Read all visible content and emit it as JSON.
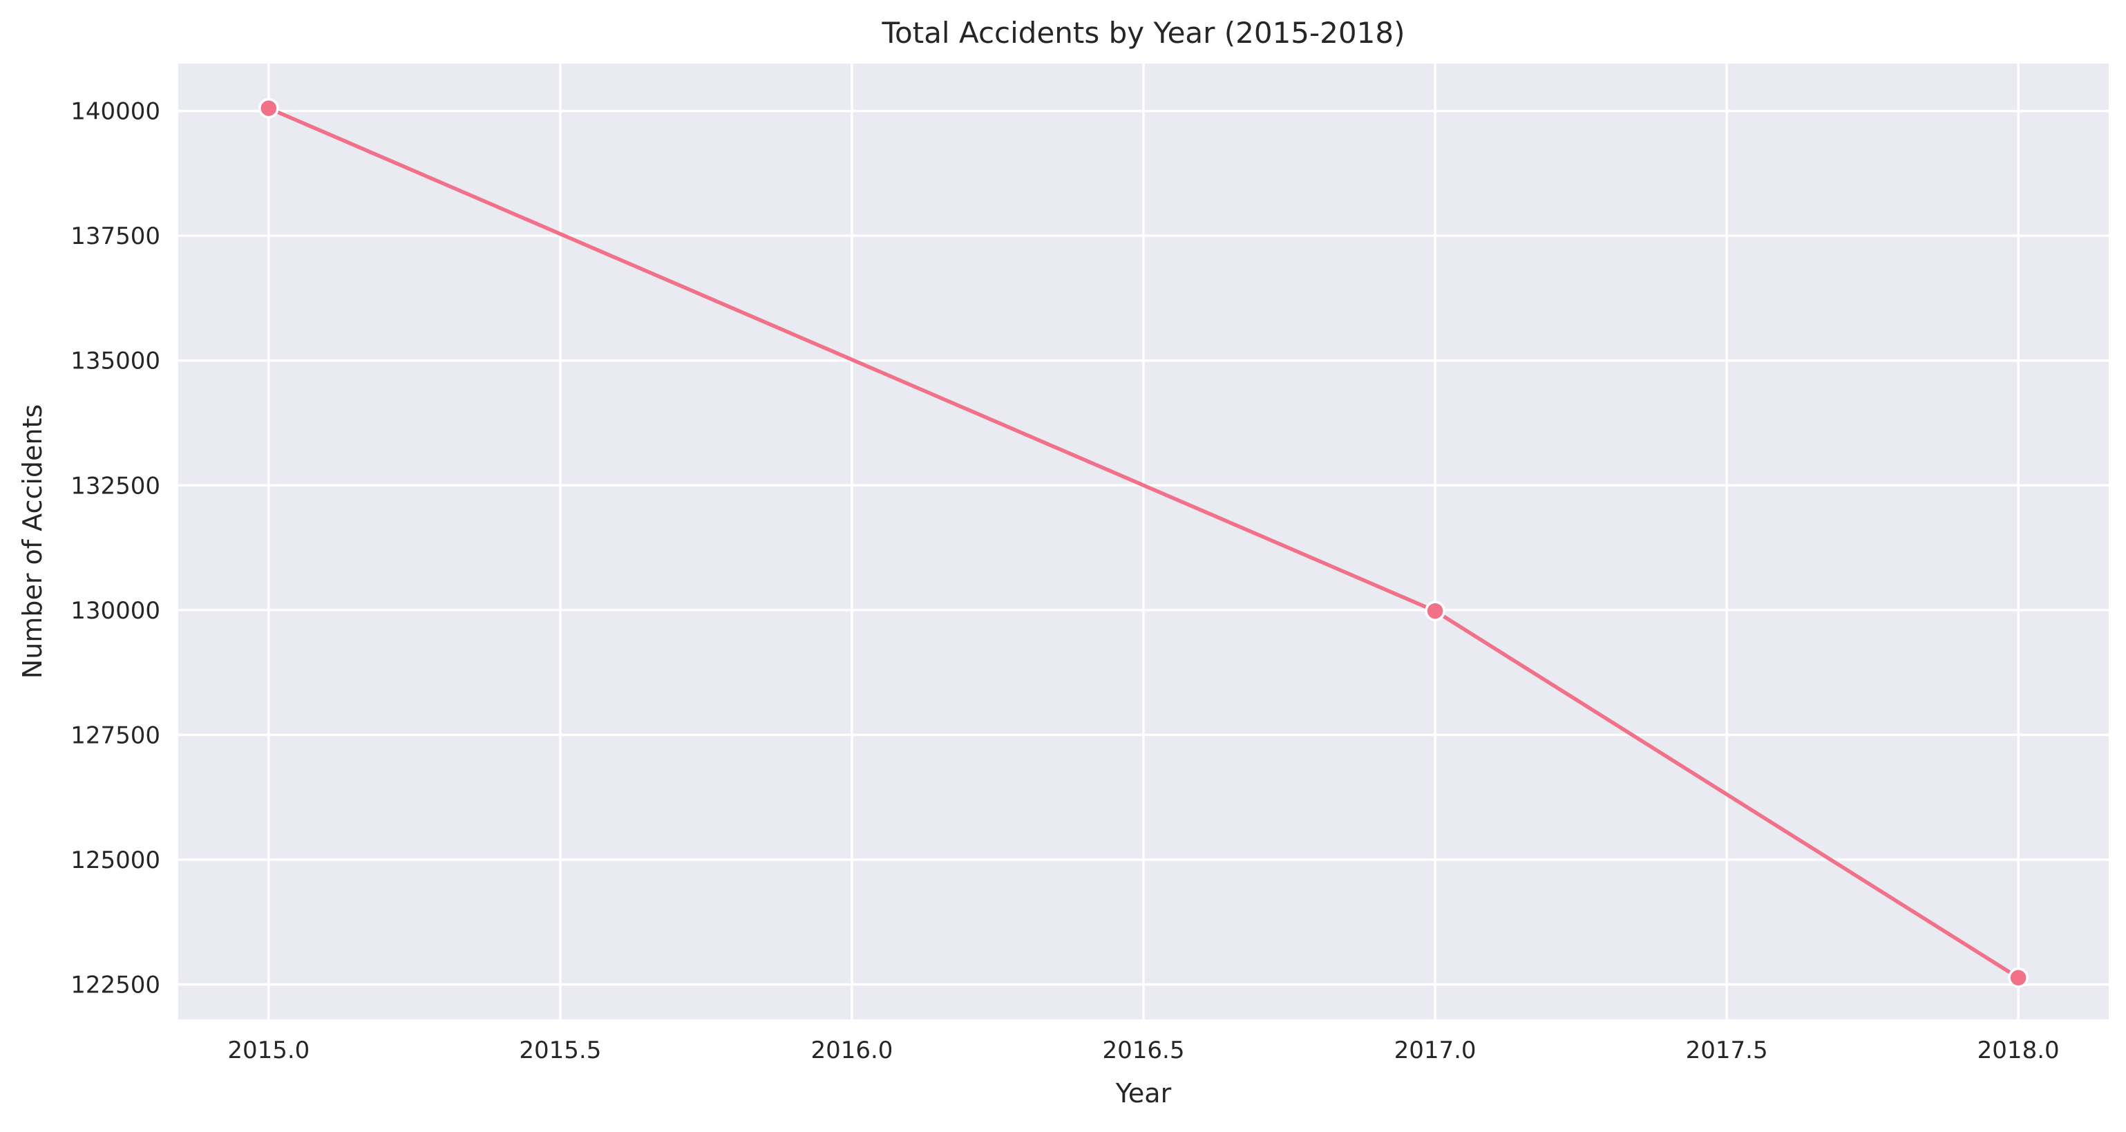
{
  "chart_data": {
    "type": "line",
    "title": "Total Accidents by Year (2015-2018)",
    "xlabel": "Year",
    "ylabel": "Number of Accidents",
    "xlim": [
      2014.845,
      2018.155
    ],
    "ylim": [
      121800,
      140950
    ],
    "xticks": [
      2015.0,
      2015.5,
      2016.0,
      2016.5,
      2017.0,
      2017.5,
      2018.0
    ],
    "xtick_labels": [
      "2015.0",
      "2015.5",
      "2016.0",
      "2016.5",
      "2017.0",
      "2017.5",
      "2018.0"
    ],
    "yticks": [
      122500,
      125000,
      127500,
      130000,
      132500,
      135000,
      137500,
      140000
    ],
    "ytick_labels": [
      "122500",
      "125000",
      "127500",
      "130000",
      "132500",
      "135000",
      "137500",
      "140000"
    ],
    "grid": true,
    "series": [
      {
        "name": "Total Accidents",
        "color": "#f07188",
        "marker": "circle",
        "x": [
          2015,
          2017,
          2018
        ],
        "y": [
          140056,
          129982,
          122635
        ]
      }
    ]
  },
  "colors": {
    "plot_background": "#eaeaf2",
    "grid": "#ffffff",
    "text": "#262626"
  }
}
